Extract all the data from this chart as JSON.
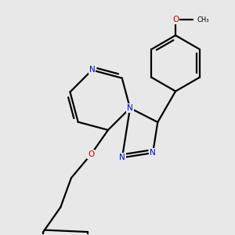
{
  "bg": "#e8e8e8",
  "bond_color": "#000000",
  "N_color": "#0000ee",
  "O_color": "#cc0000",
  "lw": 1.6,
  "dlw": 1.6,
  "figsize": [
    3.0,
    3.0
  ],
  "dpi": 100,
  "xlim": [
    -2.5,
    3.5
  ],
  "ylim": [
    -4.0,
    3.5
  ]
}
